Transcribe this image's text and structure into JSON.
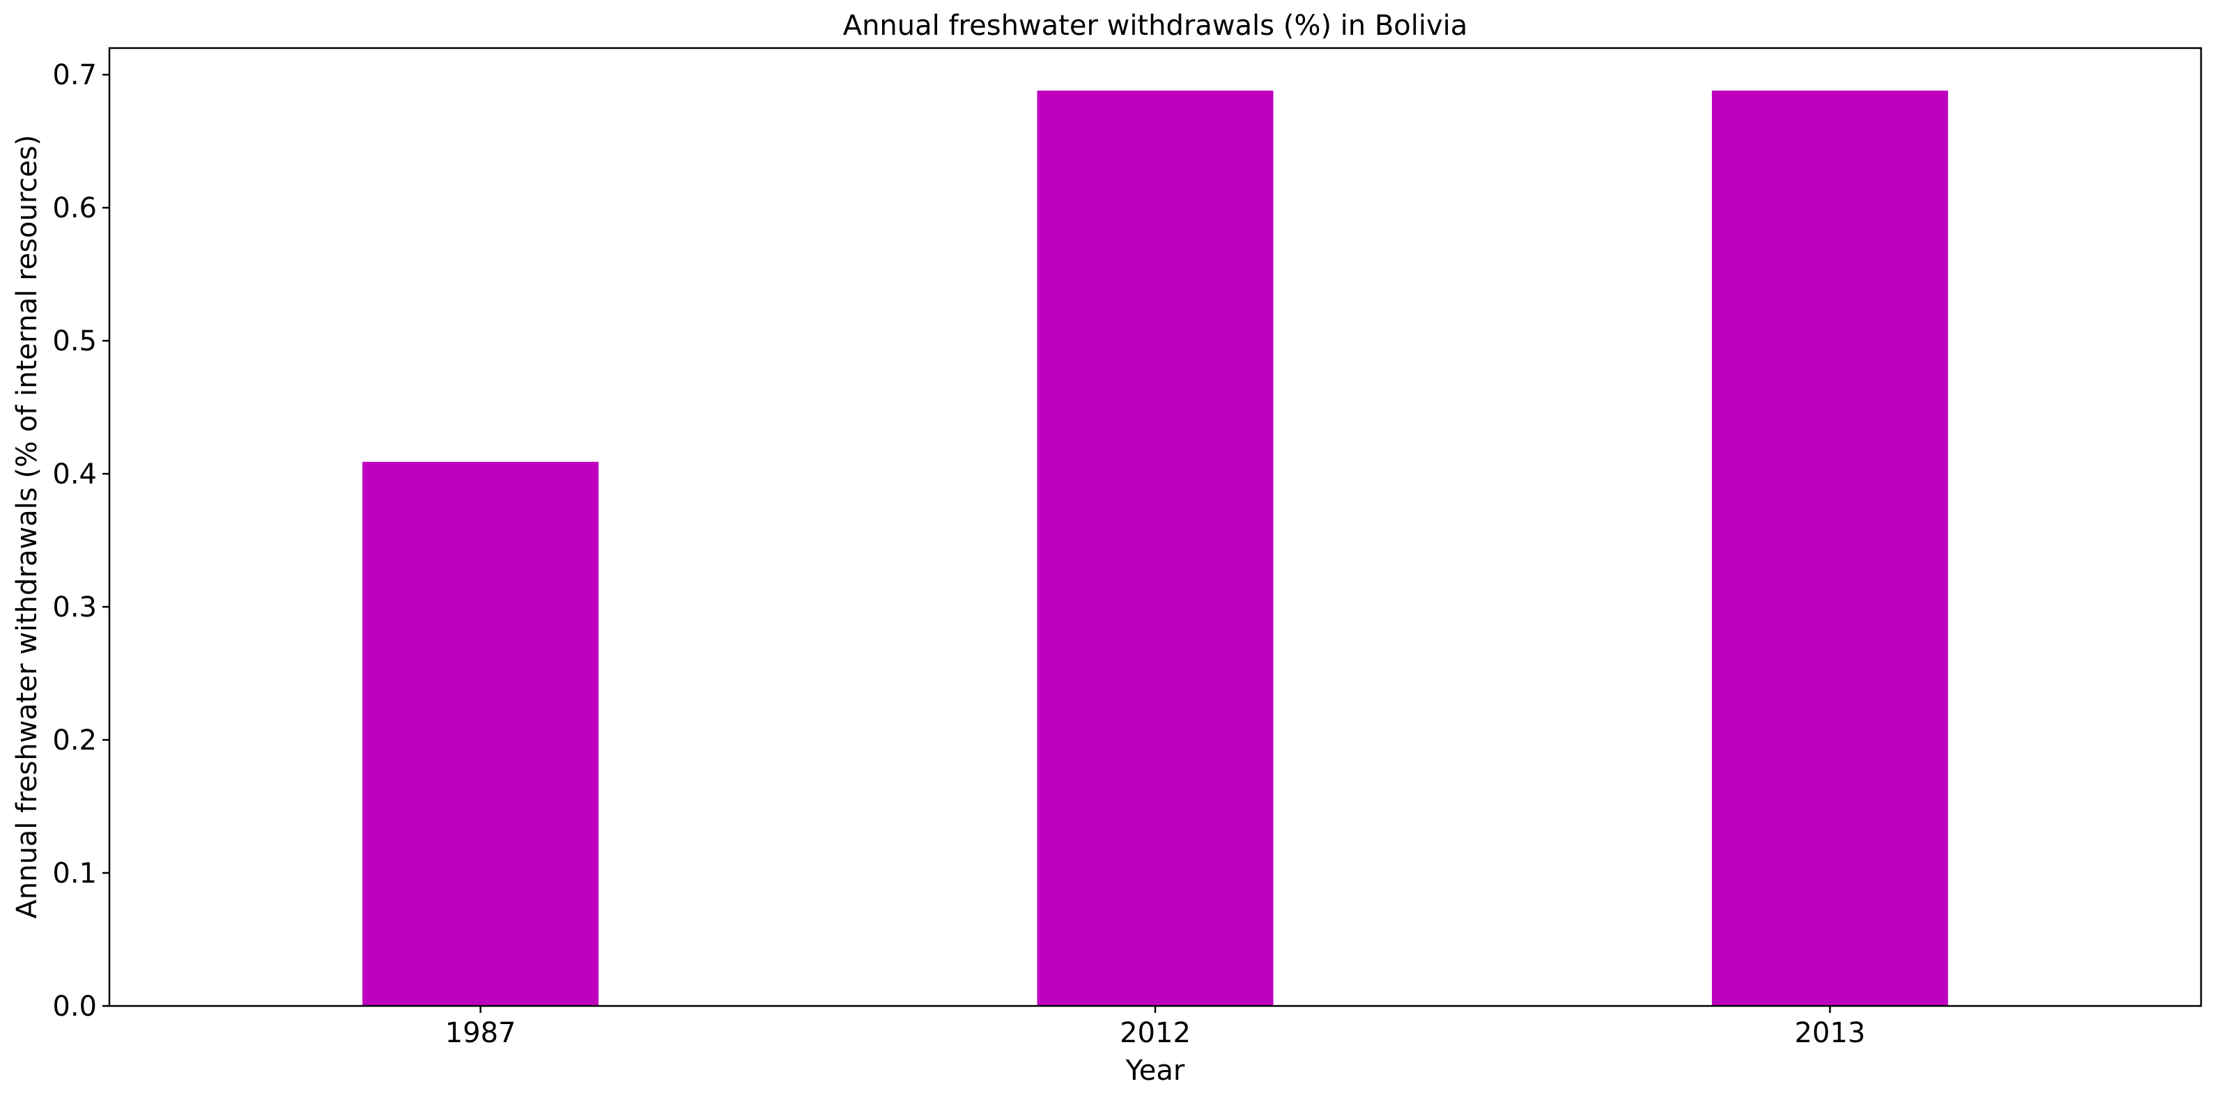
{
  "chart_data": {
    "type": "bar",
    "title": "Annual freshwater withdrawals (%) in Bolivia",
    "xlabel": "Year",
    "ylabel": "Annual freshwater withdrawals (% of internal resources)",
    "categories": [
      "1987",
      "2012",
      "2013"
    ],
    "values": [
      0.409,
      0.688,
      0.688
    ],
    "ylim": [
      0,
      0.72
    ],
    "yticks": [
      0.0,
      0.1,
      0.2,
      0.3,
      0.4,
      0.5,
      0.6,
      0.7
    ],
    "ytick_labels": [
      "0.0",
      "0.1",
      "0.2",
      "0.3",
      "0.4",
      "0.5",
      "0.6",
      "0.7"
    ],
    "bar_color": "#bf00bf",
    "grid": false,
    "legend": false
  }
}
